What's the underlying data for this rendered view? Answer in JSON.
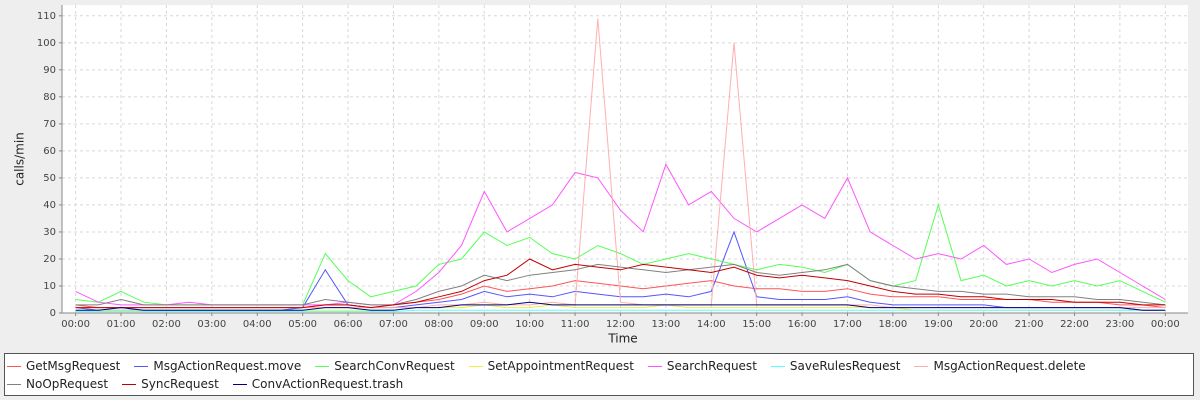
{
  "chart_data": {
    "type": "line",
    "y_label": "calls/min",
    "x_label": "Time",
    "x": [
      0,
      0.5,
      1,
      1.5,
      2,
      2.5,
      3,
      3.5,
      4,
      4.5,
      5,
      5.5,
      6,
      6.5,
      7,
      7.5,
      8,
      8.5,
      9,
      9.5,
      10,
      10.5,
      11,
      11.5,
      12,
      12.5,
      13,
      13.5,
      14,
      14.5,
      15,
      15.5,
      16,
      16.5,
      17,
      17.5,
      18,
      18.5,
      19,
      19.5,
      20,
      20.5,
      21,
      21.5,
      22,
      22.5,
      23,
      23.5,
      24
    ],
    "xlim": [
      -0.3,
      24.5
    ],
    "xticks": [
      {
        "value": 0,
        "label": "00:00"
      },
      {
        "value": 1,
        "label": "01:00"
      },
      {
        "value": 2,
        "label": "02:00"
      },
      {
        "value": 3,
        "label": "03:00"
      },
      {
        "value": 4,
        "label": "04:00"
      },
      {
        "value": 5,
        "label": "05:00"
      },
      {
        "value": 6,
        "label": "06:00"
      },
      {
        "value": 7,
        "label": "07:00"
      },
      {
        "value": 8,
        "label": "08:00"
      },
      {
        "value": 9,
        "label": "09:00"
      },
      {
        "value": 10,
        "label": "10:00"
      },
      {
        "value": 11,
        "label": "11:00"
      },
      {
        "value": 12,
        "label": "12:00"
      },
      {
        "value": 13,
        "label": "13:00"
      },
      {
        "value": 14,
        "label": "14:00"
      },
      {
        "value": 15,
        "label": "15:00"
      },
      {
        "value": 16,
        "label": "16:00"
      },
      {
        "value": 17,
        "label": "17:00"
      },
      {
        "value": 18,
        "label": "18:00"
      },
      {
        "value": 19,
        "label": "19:00"
      },
      {
        "value": 20,
        "label": "20:00"
      },
      {
        "value": 21,
        "label": "21:00"
      },
      {
        "value": 22,
        "label": "22:00"
      },
      {
        "value": 23,
        "label": "23:00"
      },
      {
        "value": 24,
        "label": "00:00"
      }
    ],
    "ylim": [
      0,
      114
    ],
    "yticks": [
      0,
      10,
      20,
      30,
      40,
      50,
      60,
      70,
      80,
      90,
      100,
      110
    ],
    "grid": true,
    "series": [
      {
        "name": "GetMsgRequest",
        "color": "#ff5555",
        "values": [
          3,
          2,
          2,
          2,
          2,
          2,
          2,
          2,
          2,
          2,
          2,
          3,
          3,
          2,
          3,
          4,
          5,
          7,
          10,
          8,
          9,
          10,
          12,
          11,
          10,
          9,
          10,
          11,
          12,
          10,
          9,
          9,
          8,
          8,
          9,
          7,
          6,
          6,
          6,
          5,
          5,
          5,
          5,
          4,
          4,
          4,
          3,
          3,
          2
        ]
      },
      {
        "name": "MsgActionRequest.move",
        "color": "#5555ff",
        "values": [
          2,
          1,
          1,
          1,
          1,
          1,
          1,
          1,
          1,
          1,
          2,
          16,
          3,
          2,
          2,
          3,
          4,
          5,
          8,
          6,
          7,
          6,
          8,
          7,
          6,
          6,
          7,
          6,
          8,
          30,
          6,
          5,
          5,
          5,
          6,
          4,
          3,
          3,
          3,
          3,
          3,
          2,
          2,
          2,
          2,
          2,
          2,
          1,
          1
        ]
      },
      {
        "name": "SearchConvRequest",
        "color": "#55ff55",
        "values": [
          5,
          4,
          8,
          4,
          3,
          3,
          3,
          3,
          3,
          3,
          3,
          22,
          12,
          6,
          8,
          10,
          18,
          20,
          30,
          25,
          28,
          22,
          20,
          25,
          22,
          18,
          20,
          22,
          20,
          18,
          16,
          18,
          17,
          15,
          18,
          12,
          10,
          12,
          40,
          12,
          14,
          10,
          12,
          10,
          12,
          10,
          12,
          8,
          4
        ]
      },
      {
        "name": "SetAppointmentRequest",
        "color": "#eeee44",
        "values": [
          1,
          1,
          1,
          1,
          1,
          1,
          1,
          1,
          1,
          1,
          1,
          1,
          1,
          1,
          1,
          2,
          2,
          2,
          3,
          2,
          2,
          3,
          2,
          2,
          2,
          2,
          3,
          2,
          2,
          2,
          2,
          2,
          2,
          2,
          2,
          2,
          2,
          1,
          1,
          1,
          1,
          1,
          1,
          1,
          1,
          1,
          1,
          1,
          1
        ]
      },
      {
        "name": "SearchRequest",
        "color": "#ff55ff",
        "values": [
          8,
          4,
          3,
          3,
          3,
          4,
          3,
          3,
          3,
          3,
          3,
          3,
          4,
          3,
          3,
          8,
          15,
          25,
          45,
          30,
          35,
          40,
          52,
          50,
          38,
          30,
          55,
          40,
          45,
          35,
          30,
          35,
          40,
          35,
          50,
          30,
          25,
          20,
          22,
          20,
          25,
          18,
          20,
          15,
          18,
          20,
          15,
          10,
          5
        ]
      },
      {
        "name": "SaveRulesRequest",
        "color": "#55ffff",
        "values": [
          0.5,
          0.5,
          0.5,
          0.5,
          0.5,
          0.5,
          0.5,
          0.5,
          0.5,
          0.5,
          0.5,
          0.5,
          0.5,
          0.5,
          0.5,
          1,
          1,
          1,
          1,
          1,
          1,
          1,
          1,
          1,
          1,
          1,
          1,
          1,
          1,
          1,
          1,
          1,
          1,
          1,
          1,
          1,
          1,
          1,
          1,
          1,
          1,
          1,
          1,
          1,
          1,
          1,
          1,
          1,
          1
        ]
      },
      {
        "name": "MsgActionRequest.delete",
        "color": "#ffafaf",
        "values": [
          2,
          2,
          2,
          2,
          2,
          2,
          2,
          2,
          2,
          2,
          2,
          2,
          2,
          2,
          2,
          2,
          3,
          3,
          4,
          3,
          3,
          4,
          3,
          109,
          4,
          3,
          3,
          3,
          3,
          100,
          3,
          3,
          3,
          3,
          3,
          3,
          2,
          2,
          2,
          2,
          2,
          2,
          2,
          2,
          2,
          2,
          2,
          2,
          2
        ]
      },
      {
        "name": "NoOpRequest",
        "color": "#808080",
        "values": [
          3,
          3,
          5,
          3,
          3,
          3,
          3,
          3,
          3,
          3,
          3,
          5,
          4,
          3,
          3,
          5,
          8,
          10,
          14,
          12,
          14,
          15,
          16,
          18,
          17,
          16,
          15,
          16,
          17,
          18,
          15,
          14,
          15,
          16,
          18,
          12,
          10,
          9,
          8,
          8,
          7,
          7,
          6,
          6,
          6,
          5,
          5,
          4,
          3
        ]
      },
      {
        "name": "SyncRequest",
        "color": "#c00000",
        "values": [
          2,
          2,
          2,
          2,
          2,
          2,
          2,
          2,
          2,
          2,
          2,
          3,
          3,
          2,
          3,
          4,
          6,
          8,
          12,
          14,
          20,
          16,
          18,
          17,
          16,
          18,
          17,
          16,
          15,
          17,
          14,
          13,
          14,
          13,
          12,
          10,
          8,
          7,
          7,
          6,
          6,
          5,
          5,
          5,
          4,
          4,
          4,
          3,
          3
        ]
      },
      {
        "name": "ConvActionRequest.trash",
        "color": "#000080",
        "values": [
          1,
          1,
          2,
          1,
          1,
          1,
          1,
          1,
          1,
          1,
          1,
          2,
          2,
          1,
          1,
          2,
          2,
          3,
          3,
          3,
          4,
          3,
          3,
          3,
          3,
          3,
          3,
          3,
          3,
          3,
          3,
          3,
          3,
          3,
          3,
          2,
          2,
          2,
          2,
          2,
          2,
          2,
          2,
          2,
          2,
          2,
          2,
          1,
          1
        ]
      }
    ]
  }
}
